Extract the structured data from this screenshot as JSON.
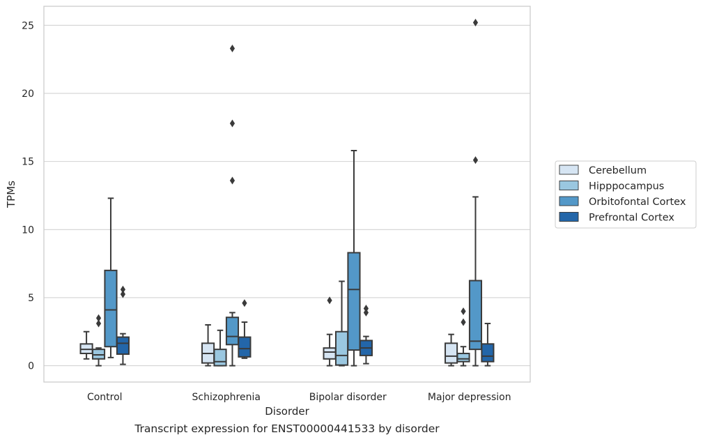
{
  "caption": "Transcript expression for ENST00000441533 by disorder",
  "chart_data": {
    "type": "box",
    "title": "",
    "xlabel": "Disorder",
    "ylabel": "TPMs",
    "ylim": [
      -1.2,
      26.4
    ],
    "yticks": [
      0,
      5,
      10,
      15,
      20,
      25
    ],
    "grid": "horizontal",
    "legend_position": "right",
    "categories": [
      "Control",
      "Schizophrenia",
      "Bipolar disorder",
      "Major depression"
    ],
    "series": [
      {
        "name": "Cerebellum",
        "color": "#d6e5f3",
        "boxes": [
          {
            "whislo": 0.5,
            "q1": 0.9,
            "med": 1.2,
            "q3": 1.6,
            "whishi": 2.5,
            "fliers": []
          },
          {
            "whislo": 0.0,
            "q1": 0.2,
            "med": 0.9,
            "q3": 1.65,
            "whishi": 3.0,
            "fliers": []
          },
          {
            "whislo": 0.0,
            "q1": 0.5,
            "med": 1.0,
            "q3": 1.3,
            "whishi": 2.3,
            "fliers": [
              4.8
            ]
          },
          {
            "whislo": 0.0,
            "q1": 0.2,
            "med": 0.7,
            "q3": 1.65,
            "whishi": 2.3,
            "fliers": []
          }
        ]
      },
      {
        "name": "Hipppocampus",
        "color": "#9ac7e0",
        "boxes": [
          {
            "whislo": 0.0,
            "q1": 0.5,
            "med": 0.8,
            "q3": 1.2,
            "whishi": 1.3,
            "fliers": [
              3.1,
              3.5
            ]
          },
          {
            "whislo": 0.0,
            "q1": 0.0,
            "med": 0.3,
            "q3": 1.2,
            "whishi": 2.6,
            "fliers": []
          },
          {
            "whislo": 0.0,
            "q1": 0.05,
            "med": 0.75,
            "q3": 2.5,
            "whishi": 6.2,
            "fliers": []
          },
          {
            "whislo": 0.0,
            "q1": 0.3,
            "med": 0.5,
            "q3": 0.9,
            "whishi": 1.4,
            "fliers": [
              3.2,
              4.0
            ]
          }
        ]
      },
      {
        "name": "Orbitofontal Cortex",
        "color": "#5398c8",
        "boxes": [
          {
            "whislo": 0.6,
            "q1": 1.4,
            "med": 4.1,
            "q3": 7.0,
            "whishi": 12.3,
            "fliers": []
          },
          {
            "whislo": 0.0,
            "q1": 1.55,
            "med": 2.15,
            "q3": 3.55,
            "whishi": 3.9,
            "fliers": [
              13.6,
              17.8,
              23.3
            ]
          },
          {
            "whislo": 0.0,
            "q1": 1.15,
            "med": 5.6,
            "q3": 8.3,
            "whishi": 15.8,
            "fliers": []
          },
          {
            "whislo": 0.0,
            "q1": 1.2,
            "med": 1.8,
            "q3": 6.25,
            "whishi": 12.4,
            "fliers": [
              15.1,
              25.2
            ]
          }
        ]
      },
      {
        "name": "Prefrontal Cortex",
        "color": "#2366a9",
        "boxes": [
          {
            "whislo": 0.1,
            "q1": 0.85,
            "med": 1.65,
            "q3": 2.1,
            "whishi": 2.35,
            "fliers": [
              5.25,
              5.6
            ]
          },
          {
            "whislo": 0.55,
            "q1": 0.65,
            "med": 1.25,
            "q3": 2.1,
            "whishi": 3.2,
            "fliers": [
              4.6
            ]
          },
          {
            "whislo": 0.15,
            "q1": 0.75,
            "med": 1.3,
            "q3": 1.85,
            "whishi": 2.15,
            "fliers": [
              3.9,
              4.2
            ]
          },
          {
            "whislo": 0.0,
            "q1": 0.3,
            "med": 0.7,
            "q3": 1.6,
            "whishi": 3.1,
            "fliers": []
          }
        ]
      }
    ]
  }
}
